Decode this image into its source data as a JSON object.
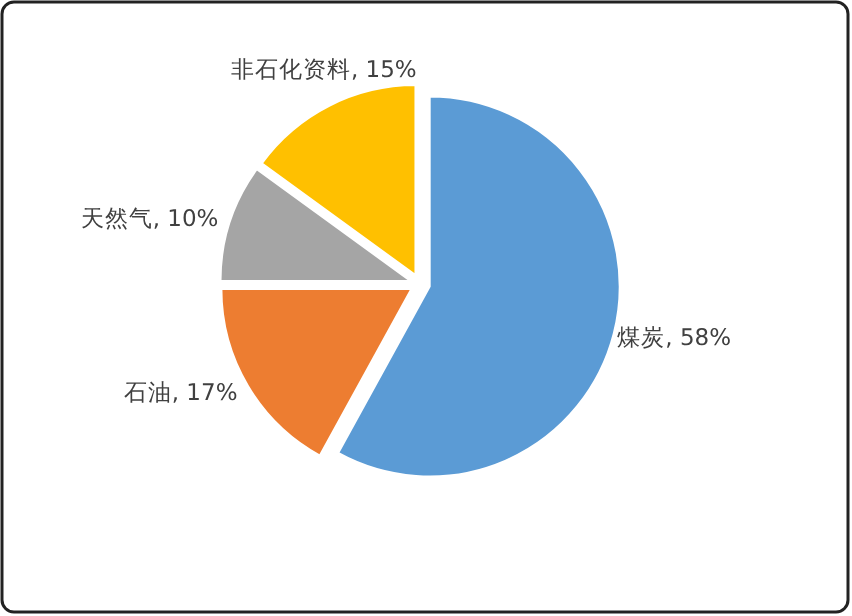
{
  "chart_data": {
    "type": "pie",
    "categories": [
      "煤炭",
      "石油",
      "天然气",
      "非石化资料"
    ],
    "values": [
      58,
      17,
      10,
      15
    ],
    "colors": [
      "#5b9bd5",
      "#ed7d31",
      "#a5a5a5",
      "#ffc000"
    ],
    "value_labels": [
      "58%",
      "17%",
      "10%",
      "15%"
    ]
  }
}
